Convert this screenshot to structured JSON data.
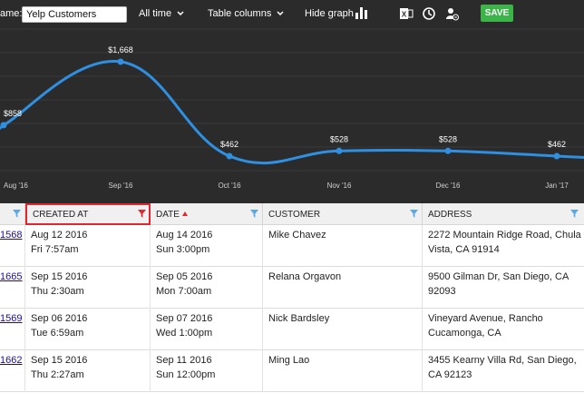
{
  "toolbar": {
    "name_label": "ame:",
    "report_name": "Yelp Customers",
    "time_filter": "All time",
    "table_columns": "Table columns",
    "hide_graph": "Hide graph",
    "save": "SAVE"
  },
  "chart_data": {
    "type": "line",
    "categories": [
      "Aug '16",
      "Sep '16",
      "Oct '16",
      "Nov '16",
      "Dec '16",
      "Jan '17"
    ],
    "values": [
      858,
      1668,
      462,
      528,
      528,
      462
    ],
    "value_labels": [
      "$858",
      "$1,668",
      "$462",
      "$528",
      "$528",
      "$462"
    ],
    "color": "#2f8fe0",
    "background": "#2b2b2b",
    "grid": true
  },
  "table": {
    "columns": [
      {
        "key": "id",
        "label": ""
      },
      {
        "key": "created_at",
        "label": "CREATED AT"
      },
      {
        "key": "date",
        "label": "DATE"
      },
      {
        "key": "customer",
        "label": "CUSTOMER"
      },
      {
        "key": "address",
        "label": "ADDRESS"
      }
    ],
    "rows": [
      {
        "id": "1568",
        "created_date": "Aug 12 2016",
        "created_time": "Fri 7:57am",
        "date": "Aug 14 2016",
        "time": "Sun 3:00pm",
        "customer": "Mike Chavez",
        "address": "2272 Mountain Ridge Road, Chula Vista, CA 91914"
      },
      {
        "id": "1665",
        "created_date": "Sep 15 2016",
        "created_time": "Thu 2:30am",
        "date": "Sep 05 2016",
        "time": "Mon 7:00am",
        "customer": "Relana Orgavon",
        "address": "9500 Gilman Dr, San Diego, CA 92093"
      },
      {
        "id": "1569",
        "created_date": "Sep 06 2016",
        "created_time": "Tue 6:59am",
        "date": "Sep 07 2016",
        "time": "Wed 1:00pm",
        "customer": "Nick Bardsley",
        "address": "Vineyard Avenue, Rancho Cucamonga, CA"
      },
      {
        "id": "1662",
        "created_date": "Sep 15 2016",
        "created_time": "Thu 2:27am",
        "date": "Sep 11 2016",
        "time": "Sun 12:00pm",
        "customer": "Ming Lao",
        "address": "3455 Kearny Villa Rd, San Diego, CA 92123"
      }
    ]
  },
  "colors": {
    "accent_red": "#e0262f",
    "save_green": "#3cb548",
    "link_blue": "#1a0dab",
    "filter_blue": "#5aa9e6"
  }
}
